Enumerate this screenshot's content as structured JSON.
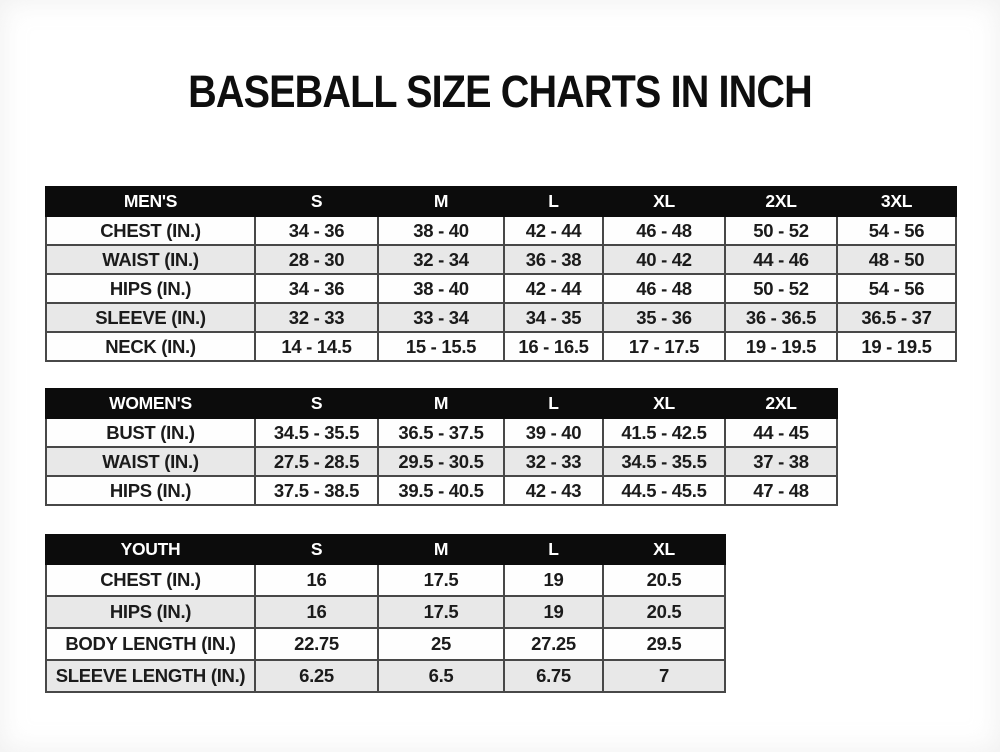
{
  "page": {
    "title": "BASEBALL SIZE CHARTS IN INCH"
  },
  "tables": [
    {
      "name": "mens-size-chart",
      "header": [
        "MEN'S",
        "S",
        "M",
        "L",
        "XL",
        "2XL",
        "3XL"
      ],
      "rows": [
        {
          "label": "CHEST (IN.)",
          "values": [
            "34 - 36",
            "38 - 40",
            "42 - 44",
            "46 - 48",
            "50 - 52",
            "54 - 56"
          ]
        },
        {
          "label": "WAIST (IN.)",
          "values": [
            "28 - 30",
            "32 - 34",
            "36 - 38",
            "40 - 42",
            "44 - 46",
            "48 - 50"
          ]
        },
        {
          "label": "HIPS (IN.)",
          "values": [
            "34 - 36",
            "38 - 40",
            "42 - 44",
            "46 - 48",
            "50 - 52",
            "54 - 56"
          ]
        },
        {
          "label": "SLEEVE (IN.)",
          "values": [
            "32 - 33",
            "33 - 34",
            "34 - 35",
            "35 - 36",
            "36 - 36.5",
            "36.5 - 37"
          ]
        },
        {
          "label": "NECK (IN.)",
          "values": [
            "14 - 14.5",
            "15 - 15.5",
            "16 - 16.5",
            "17 - 17.5",
            "19 - 19.5",
            "19 - 19.5"
          ]
        }
      ]
    },
    {
      "name": "womens-size-chart",
      "header": [
        "WOMEN'S",
        "S",
        "M",
        "L",
        "XL",
        "2XL"
      ],
      "rows": [
        {
          "label": "BUST (IN.)",
          "values": [
            "34.5 - 35.5",
            "36.5 - 37.5",
            "39 - 40",
            "41.5 - 42.5",
            "44 - 45"
          ]
        },
        {
          "label": "WAIST (IN.)",
          "values": [
            "27.5 - 28.5",
            "29.5 - 30.5",
            "32 - 33",
            "34.5 - 35.5",
            "37 - 38"
          ]
        },
        {
          "label": "HIPS (IN.)",
          "values": [
            "37.5 - 38.5",
            "39.5 - 40.5",
            "42 - 43",
            "44.5 - 45.5",
            "47 - 48"
          ]
        }
      ]
    },
    {
      "name": "youth-size-chart",
      "header": [
        "YOUTH",
        "S",
        "M",
        "L",
        "XL"
      ],
      "rows": [
        {
          "label": "CHEST (IN.)",
          "values": [
            "16",
            "17.5",
            "19",
            "20.5"
          ]
        },
        {
          "label": "HIPS (IN.)",
          "values": [
            "16",
            "17.5",
            "19",
            "20.5"
          ]
        },
        {
          "label": "BODY LENGTH (IN.)",
          "values": [
            "22.75",
            "25",
            "27.25",
            "29.5"
          ]
        },
        {
          "label": "SLEEVE LENGTH (IN.)",
          "values": [
            "6.25",
            "6.5",
            "6.75",
            "7"
          ]
        }
      ]
    }
  ],
  "colors": {
    "header_bg": "#0c0c0c",
    "header_text": "#ffffff",
    "row_alt_bg": "#e8e8e8",
    "border": "#484848",
    "text": "#1b1b1b"
  }
}
